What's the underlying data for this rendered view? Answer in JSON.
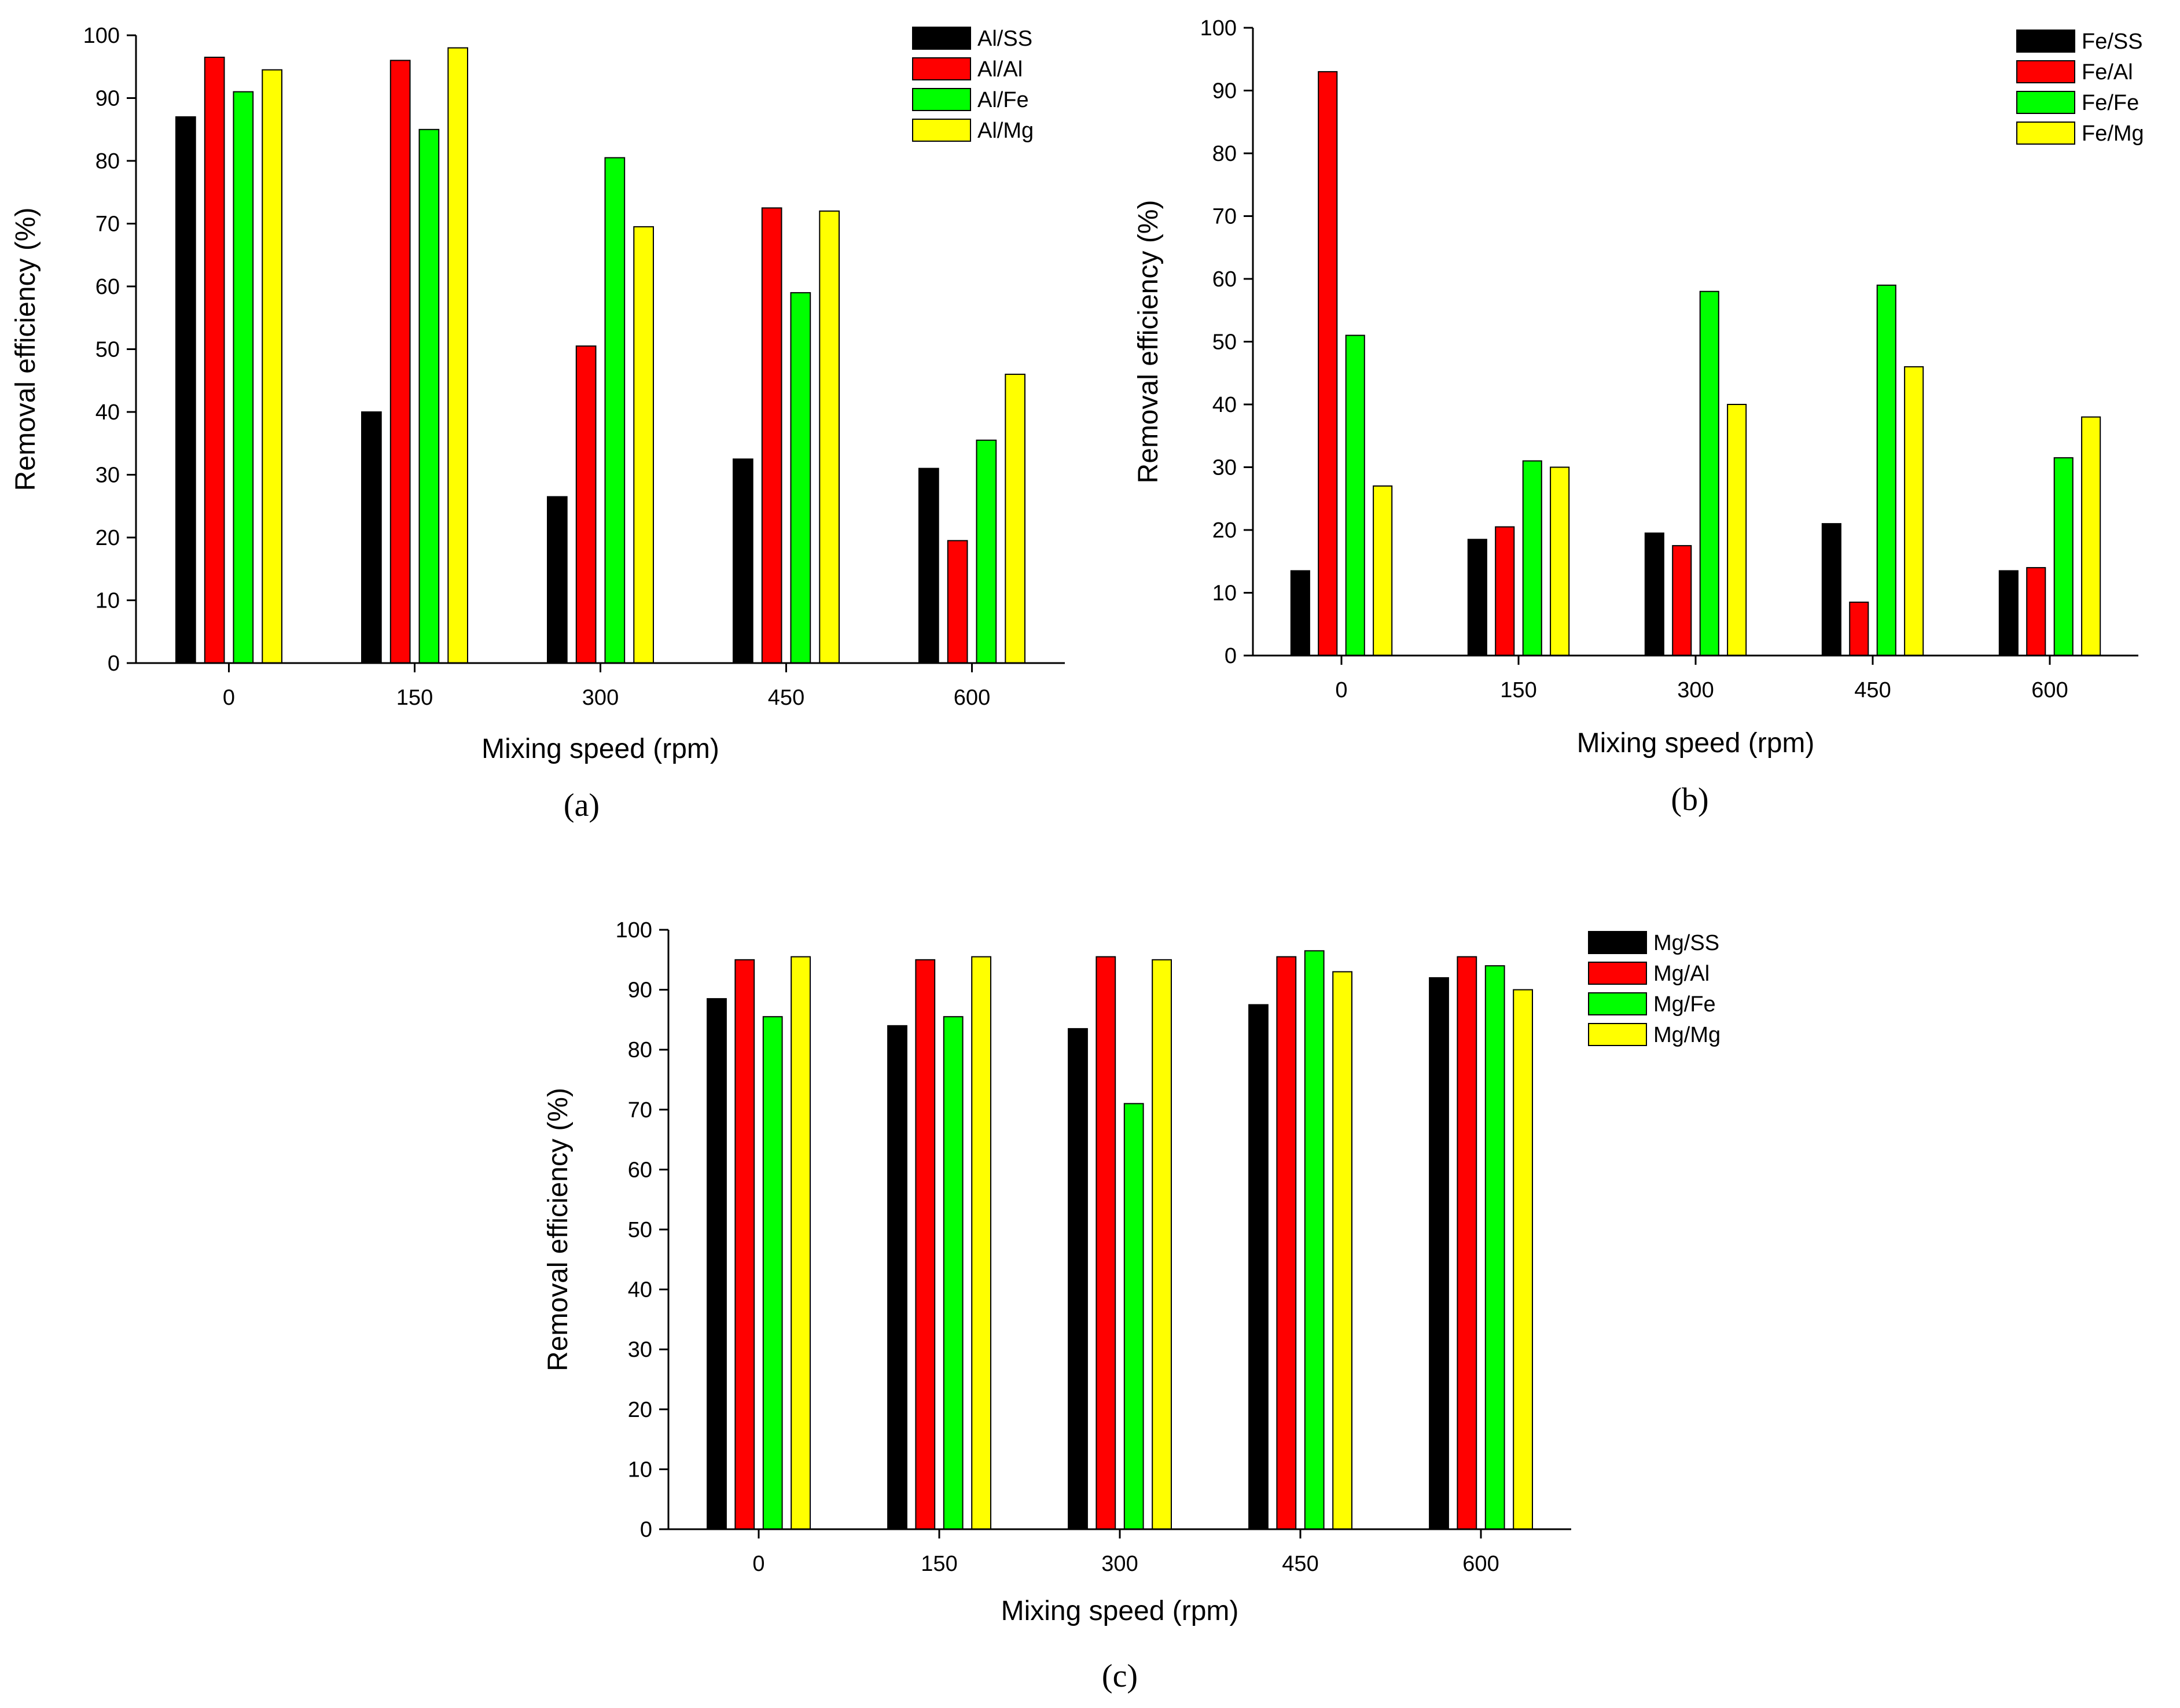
{
  "colors": {
    "black": "#000000",
    "red": "#ff0000",
    "green": "#00ff00",
    "yellow": "#ffff00"
  },
  "chart_data": [
    {
      "type": "bar",
      "caption": "(a)",
      "categories": [
        "0",
        "150",
        "300",
        "450",
        "600"
      ],
      "xlabel": "Mixing speed (rpm)",
      "ylabel": "Removal efficiency (%)",
      "ylim": [
        0,
        100
      ],
      "yticks": [
        "0",
        "10",
        "20",
        "30",
        "40",
        "50",
        "60",
        "70",
        "80",
        "90",
        "100"
      ],
      "legend_position": "top-right",
      "series": [
        {
          "name": "Al/SS",
          "color": "#000000",
          "values": [
            87,
            40,
            26.5,
            32.5,
            31
          ]
        },
        {
          "name": "Al/Al",
          "color": "#ff0000",
          "values": [
            96.5,
            96,
            50.5,
            72.5,
            19.5
          ]
        },
        {
          "name": "Al/Fe",
          "color": "#00ff00",
          "values": [
            91,
            85,
            80.5,
            59,
            35.5
          ]
        },
        {
          "name": "Al/Mg",
          "color": "#ffff00",
          "values": [
            94.5,
            98,
            69.5,
            72,
            46
          ]
        }
      ]
    },
    {
      "type": "bar",
      "caption": "(b)",
      "categories": [
        "0",
        "150",
        "300",
        "450",
        "600"
      ],
      "xlabel": "Mixing speed (rpm)",
      "ylabel": "Removal efficiency (%)",
      "ylim": [
        0,
        100
      ],
      "yticks": [
        "0",
        "10",
        "20",
        "30",
        "40",
        "50",
        "60",
        "70",
        "80",
        "90",
        "100"
      ],
      "legend_position": "top-right",
      "series": [
        {
          "name": "Fe/SS",
          "color": "#000000",
          "values": [
            13.5,
            18.5,
            19.5,
            21,
            13.5
          ]
        },
        {
          "name": "Fe/Al",
          "color": "#ff0000",
          "values": [
            93,
            20.5,
            17.5,
            8.5,
            14
          ]
        },
        {
          "name": "Fe/Fe",
          "color": "#00ff00",
          "values": [
            51,
            31,
            58,
            59,
            31.5
          ]
        },
        {
          "name": "Fe/Mg",
          "color": "#ffff00",
          "values": [
            27,
            30,
            40,
            46,
            38
          ]
        }
      ]
    },
    {
      "type": "bar",
      "caption": "(c)",
      "categories": [
        "0",
        "150",
        "300",
        "450",
        "600"
      ],
      "xlabel": "Mixing speed (rpm)",
      "ylabel": "Removal efficiency (%)",
      "ylim": [
        0,
        100
      ],
      "yticks": [
        "0",
        "10",
        "20",
        "30",
        "40",
        "50",
        "60",
        "70",
        "80",
        "90",
        "100"
      ],
      "legend_position": "top-right",
      "series": [
        {
          "name": "Mg/SS",
          "color": "#000000",
          "values": [
            88.5,
            84,
            83.5,
            87.5,
            92
          ]
        },
        {
          "name": "Mg/Al",
          "color": "#ff0000",
          "values": [
            95,
            95,
            95.5,
            95.5,
            95.5
          ]
        },
        {
          "name": "Mg/Fe",
          "color": "#00ff00",
          "values": [
            85.5,
            85.5,
            71,
            96.5,
            94
          ]
        },
        {
          "name": "Mg/Mg",
          "color": "#ffff00",
          "values": [
            95.5,
            95.5,
            95,
            93,
            90
          ]
        }
      ]
    }
  ]
}
